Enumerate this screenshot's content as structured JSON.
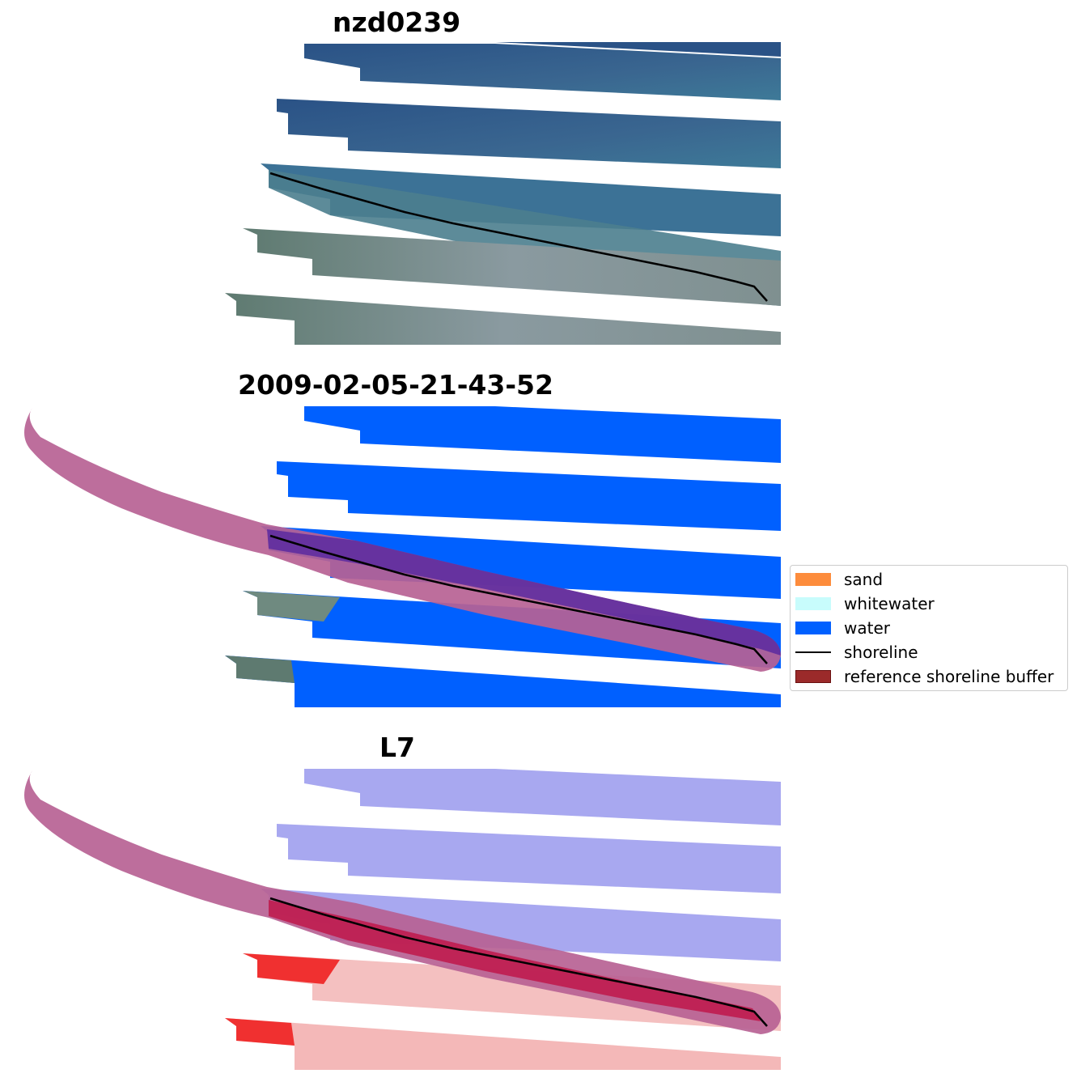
{
  "panels": [
    {
      "title": "nzd0239"
    },
    {
      "title": "2009-02-05-21-43-52"
    },
    {
      "title": "L7"
    }
  ],
  "legend": {
    "items": [
      {
        "label": "sand",
        "color": "#fd8c3c",
        "kind": "patch"
      },
      {
        "label": "whitewater",
        "color": "#c8fcfc",
        "kind": "patch"
      },
      {
        "label": "water",
        "color": "#0060ff",
        "kind": "patch"
      },
      {
        "label": "shoreline",
        "color": "#000000",
        "kind": "line"
      },
      {
        "label": "reference shoreline buffer",
        "color": "#9b2a2a",
        "kind": "patch"
      }
    ]
  },
  "colors": {
    "rgb_water": "#335a8a",
    "rgb_land": "#7f8a90",
    "class_water": "#0060ff",
    "buffer": "#b76294",
    "buffer_overlay_water": "#5b2aa0",
    "index_water": "#a8a8f0",
    "index_land": "#f03030",
    "shoreline": "#000000"
  }
}
